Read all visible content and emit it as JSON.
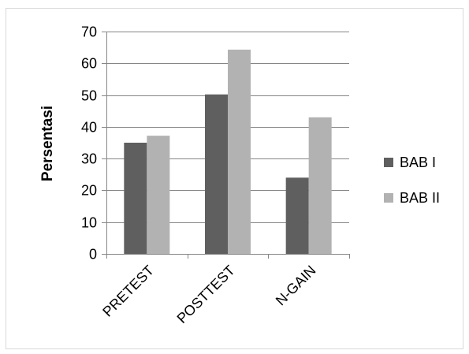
{
  "chart_data": {
    "type": "bar",
    "categories": [
      "PRETEST",
      "POSTTEST",
      "N-GAIN"
    ],
    "series": [
      {
        "name": "BAB I",
        "values": [
          35,
          50.2,
          24
        ],
        "color": "#5f5f5f"
      },
      {
        "name": "BAB II",
        "values": [
          37.2,
          64.3,
          43
        ],
        "color": "#b2b2b2"
      }
    ],
    "xlabel": "",
    "ylabel": "Persentasi",
    "ylim": [
      0,
      70
    ],
    "yticks": [
      0,
      10,
      20,
      30,
      40,
      50,
      60,
      70
    ],
    "grid": true,
    "legend": "right"
  }
}
